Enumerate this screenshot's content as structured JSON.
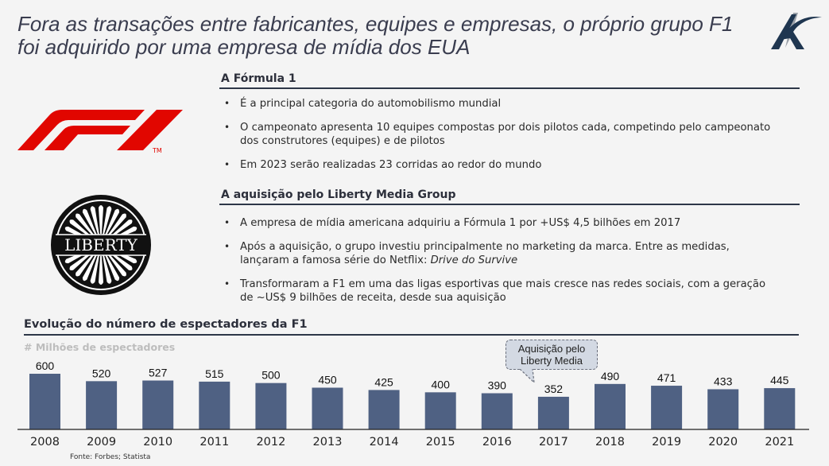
{
  "title": "Fora as transações entre fabricantes, equipes e empresas, o próprio grupo F1 foi adquirido por uma empresa de mídia dos EUA",
  "logos": {
    "brand": "company-logo-icon",
    "f1": "f1-logo-icon",
    "f1_trademark": "TM",
    "liberty": "liberty-media-logo-icon",
    "liberty_text": "LIBERTY"
  },
  "sections": [
    {
      "heading": "A Fórmula 1",
      "bullets": [
        "É a principal categoria do automobilismo mundial",
        "O campeonato apresenta 10 equipes compostas por dois pilotos cada, competindo pelo campeonato dos construtores (equipes) e de pilotos",
        "Em 2023 serão realizadas 23 corridas ao redor do mundo"
      ]
    },
    {
      "heading": "A aquisição pelo Liberty Media Group",
      "bullets": [
        "A empresa de mídia americana adquiriu a Fórmula 1 por +US$ 4,5 bilhões em 2017",
        "Após a aquisição, o grupo investiu principalmente no marketing da marca. Entre as medidas, lançaram a famosa série do Netflix: ",
        "Transformaram a F1 em uma das ligas esportivas que mais cresce nas redes sociais, com a geração de ~US$ 9 bilhões de receita, desde sua aquisição"
      ],
      "bullet2_italic": "Drive do Survive"
    }
  ],
  "chart_data": {
    "type": "bar",
    "title": "Evolução do número de espectadores da F1",
    "ylabel": "# Milhões de espectadores",
    "xlabel": "",
    "categories": [
      "2008",
      "2009",
      "2010",
      "2011",
      "2012",
      "2013",
      "2014",
      "2015",
      "2016",
      "2017",
      "2018",
      "2019",
      "2020",
      "2021"
    ],
    "values": [
      600,
      520,
      527,
      515,
      500,
      450,
      425,
      400,
      390,
      352,
      490,
      471,
      433,
      445
    ],
    "ylim": [
      0,
      600
    ],
    "grid": false,
    "bar_color": "#4f6183",
    "annotation": {
      "category": "2017",
      "text_line1": "Aquisição pelo",
      "text_line2": "Liberty Media"
    },
    "source": "Fonte: Forbes; Statista"
  }
}
